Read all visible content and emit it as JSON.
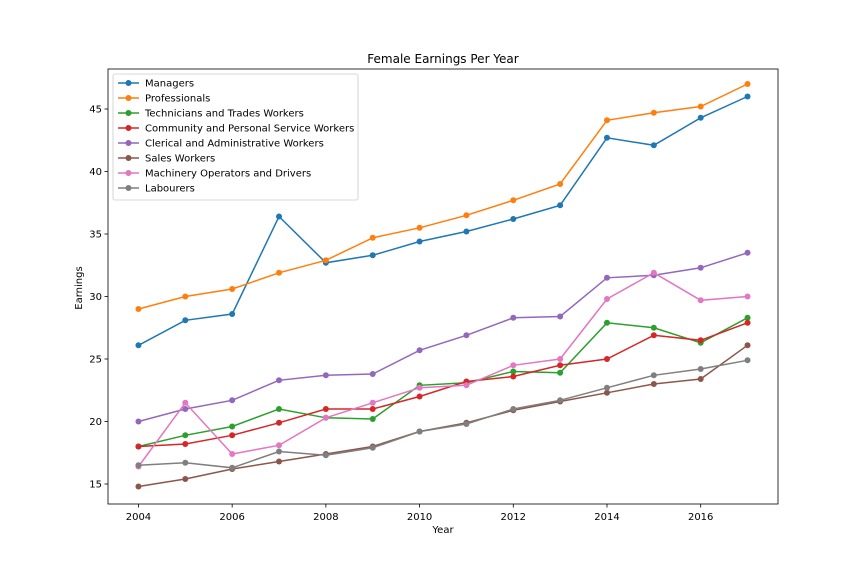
{
  "chart_data": {
    "type": "line",
    "title": "Female Earnings Per Year",
    "xlabel": "Year",
    "ylabel": "Earnings",
    "x": [
      2004,
      2005,
      2006,
      2007,
      2008,
      2009,
      2010,
      2011,
      2012,
      2013,
      2014,
      2015,
      2016,
      2017
    ],
    "xlim": [
      2003.35,
      2017.65
    ],
    "ylim": [
      13.4,
      48.2
    ],
    "xticks": [
      2004,
      2006,
      2008,
      2010,
      2012,
      2014,
      2016
    ],
    "yticks": [
      15,
      20,
      25,
      30,
      35,
      40,
      45
    ],
    "grid": false,
    "legend": "upper-left",
    "series": [
      {
        "name": "Managers",
        "color": "#1f77b4",
        "values": [
          26.1,
          28.1,
          28.6,
          36.4,
          32.7,
          33.3,
          34.4,
          35.2,
          36.2,
          37.3,
          42.7,
          42.1,
          44.3,
          46.0
        ]
      },
      {
        "name": "Professionals",
        "color": "#ff7f0e",
        "values": [
          29.0,
          30.0,
          30.6,
          31.9,
          32.9,
          34.7,
          35.5,
          36.5,
          37.7,
          39.0,
          44.1,
          44.7,
          45.2,
          47.0
        ]
      },
      {
        "name": "Technicians and Trades Workers",
        "color": "#2ca02c",
        "values": [
          18.0,
          18.9,
          19.6,
          21.0,
          20.3,
          20.2,
          22.9,
          23.1,
          24.0,
          23.9,
          27.9,
          27.5,
          26.3,
          28.3
        ]
      },
      {
        "name": "Community and Personal Service Workers",
        "color": "#d62728",
        "values": [
          18.0,
          18.2,
          18.9,
          19.9,
          21.0,
          21.0,
          22.0,
          23.2,
          23.6,
          24.5,
          25.0,
          26.9,
          26.5,
          27.9
        ]
      },
      {
        "name": "Clerical and Administrative Workers",
        "color": "#9467bd",
        "values": [
          20.0,
          21.0,
          21.7,
          23.3,
          23.7,
          23.8,
          25.7,
          26.9,
          28.3,
          28.4,
          31.5,
          31.7,
          32.3,
          33.5
        ]
      },
      {
        "name": "Sales Workers",
        "color": "#8c564b",
        "values": [
          14.8,
          15.4,
          16.2,
          16.8,
          17.4,
          18.0,
          19.2,
          19.9,
          20.9,
          21.6,
          22.3,
          23.0,
          23.4,
          26.1
        ]
      },
      {
        "name": "Machinery Operators and Drivers",
        "color": "#e377c2",
        "values": [
          16.4,
          21.5,
          17.4,
          18.1,
          20.3,
          21.5,
          22.7,
          22.9,
          24.5,
          25.0,
          29.8,
          31.9,
          29.7,
          30.0
        ]
      },
      {
        "name": "Labourers",
        "color": "#7f7f7f",
        "values": [
          16.5,
          16.7,
          16.3,
          17.6,
          17.3,
          17.9,
          19.2,
          19.8,
          21.0,
          21.7,
          22.7,
          23.7,
          24.2,
          24.9
        ]
      }
    ]
  }
}
